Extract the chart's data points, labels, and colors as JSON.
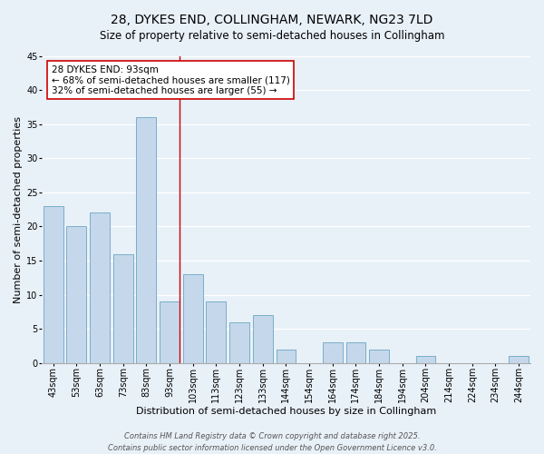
{
  "title": "28, DYKES END, COLLINGHAM, NEWARK, NG23 7LD",
  "subtitle": "Size of property relative to semi-detached houses in Collingham",
  "xlabel": "Distribution of semi-detached houses by size in Collingham",
  "ylabel": "Number of semi-detached properties",
  "bar_labels": [
    "43sqm",
    "53sqm",
    "63sqm",
    "73sqm",
    "83sqm",
    "93sqm",
    "103sqm",
    "113sqm",
    "123sqm",
    "133sqm",
    "144sqm",
    "154sqm",
    "164sqm",
    "174sqm",
    "184sqm",
    "194sqm",
    "204sqm",
    "214sqm",
    "224sqm",
    "234sqm",
    "244sqm"
  ],
  "bar_values": [
    23,
    20,
    22,
    16,
    36,
    9,
    13,
    9,
    6,
    7,
    2,
    0,
    3,
    3,
    2,
    0,
    1,
    0,
    0,
    0,
    1
  ],
  "bar_color": "#c5d8eb",
  "bar_edge_color": "#7aaec8",
  "marker_bar_index": 5,
  "marker_line_color": "#cc0000",
  "ylim": [
    0,
    45
  ],
  "yticks": [
    0,
    5,
    10,
    15,
    20,
    25,
    30,
    35,
    40,
    45
  ],
  "annotation_title": "28 DYKES END: 93sqm",
  "annotation_line1": "← 68% of semi-detached houses are smaller (117)",
  "annotation_line2": "32% of semi-detached houses are larger (55) →",
  "annotation_box_color": "#ffffff",
  "annotation_box_edge": "#cc0000",
  "background_color": "#e8f0f8",
  "grid_color": "#ffffff",
  "footer_line1": "Contains HM Land Registry data © Crown copyright and database right 2025.",
  "footer_line2": "Contains public sector information licensed under the Open Government Licence v3.0.",
  "title_fontsize": 10,
  "subtitle_fontsize": 8.5,
  "axis_label_fontsize": 8,
  "tick_fontsize": 7,
  "annotation_fontsize": 7.5,
  "footer_fontsize": 6
}
